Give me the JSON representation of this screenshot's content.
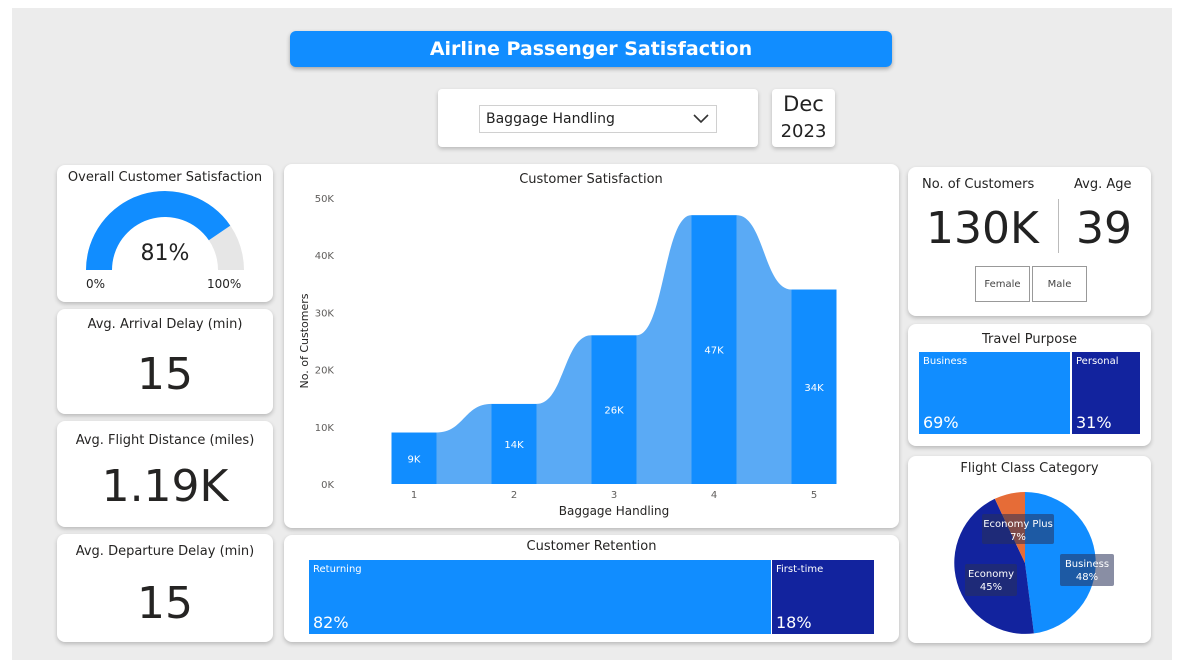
{
  "header": {
    "title": "Airline Passenger Satisfaction"
  },
  "filter": {
    "selected": "Baggage Handling"
  },
  "date": {
    "month": "Dec",
    "year": "2023"
  },
  "gauge": {
    "title": "Overall Customer Satisfaction",
    "value_label": "81%",
    "value": 0.81,
    "min_label": "0%",
    "max_label": "100%"
  },
  "kpis": {
    "arrival_delay": {
      "label": "Avg. Arrival Delay (min)",
      "value": "15"
    },
    "flight_distance": {
      "label": "Avg. Flight Distance (miles)",
      "value": "1.19K"
    },
    "departure_delay": {
      "label": "Avg. Departure Delay (min)",
      "value": "15"
    }
  },
  "customers": {
    "count_label": "No. of Customers",
    "count": "130K",
    "age_label": "Avg. Age",
    "age": "39",
    "legend": [
      "Female",
      "Male"
    ]
  },
  "travel_purpose": {
    "title": "Travel Purpose",
    "items": [
      {
        "label": "Business",
        "pct": "69%"
      },
      {
        "label": "Personal",
        "pct": "31%"
      }
    ]
  },
  "retention": {
    "title": "Customer Retention",
    "items": [
      {
        "label": "Returning",
        "pct": "82%"
      },
      {
        "label": "First-time",
        "pct": "18%"
      }
    ]
  },
  "flight_class": {
    "title": "Flight Class Category",
    "slices": [
      {
        "label": "Business",
        "pct": "48%",
        "value": 48,
        "color": "#118dff"
      },
      {
        "label": "Economy",
        "pct": "45%",
        "value": 45,
        "color": "#12239e"
      },
      {
        "label": "Economy Plus",
        "pct": "7%",
        "value": 7,
        "color": "#e66c37"
      }
    ]
  },
  "colors": {
    "accent": "#118dff",
    "dark": "#12239e",
    "ribbon": "#5aaaf5",
    "orange": "#e66c37"
  },
  "chart_data": {
    "type": "bar",
    "title": "Customer Satisfaction",
    "xlabel": "Baggage Handling",
    "ylabel": "No. of Customers",
    "categories": [
      "1",
      "2",
      "3",
      "4",
      "5"
    ],
    "values": [
      9000,
      14000,
      26000,
      47000,
      34000
    ],
    "data_labels": [
      "9K",
      "14K",
      "26K",
      "47K",
      "34K"
    ],
    "yticks": [
      "0K",
      "10K",
      "20K",
      "30K",
      "40K",
      "50K"
    ],
    "ylim": [
      0,
      50000
    ],
    "grid": false,
    "legend": "none"
  }
}
